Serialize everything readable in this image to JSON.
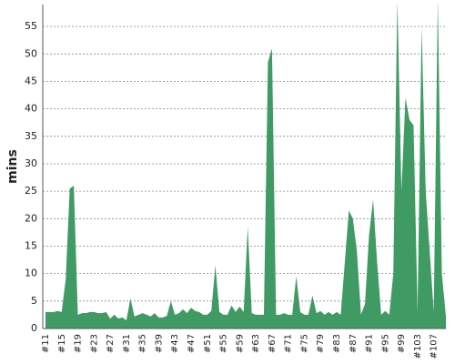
{
  "chart_data": {
    "type": "area",
    "y_label": "mins",
    "categories": [
      "#11",
      null,
      null,
      null,
      "#15",
      null,
      null,
      null,
      "#19",
      null,
      null,
      null,
      "#23",
      null,
      null,
      null,
      "#27",
      null,
      null,
      null,
      "#31",
      null,
      null,
      null,
      "#35",
      null,
      null,
      null,
      "#39",
      null,
      null,
      null,
      "#43",
      null,
      null,
      null,
      "#47",
      null,
      null,
      null,
      "#51",
      null,
      null,
      null,
      "#55",
      null,
      null,
      null,
      "#59",
      null,
      null,
      null,
      "#63",
      null,
      null,
      null,
      "#67",
      null,
      null,
      null,
      "#71",
      null,
      null,
      null,
      "#75",
      null,
      null,
      null,
      "#79",
      null,
      null,
      null,
      "#83",
      null,
      null,
      null,
      "#87",
      null,
      null,
      null,
      "#91",
      null,
      null,
      null,
      "#95",
      null,
      null,
      null,
      "#99",
      null,
      null,
      null,
      "#103",
      null,
      null,
      null,
      "#107",
      null,
      null,
      null
    ],
    "values": [
      3,
      3,
      3,
      3.2,
      3,
      9,
      25.5,
      26,
      2.5,
      2.8,
      2.8,
      3,
      3,
      2.8,
      2.8,
      3,
      1.8,
      2.5,
      1.8,
      2,
      1.5,
      5.5,
      2.2,
      2.5,
      2.8,
      2.5,
      2.2,
      2.8,
      2,
      2,
      2.3,
      5,
      2.5,
      2.8,
      3.5,
      2.8,
      3.8,
      3.2,
      3,
      2.5,
      2.5,
      3.2,
      11.5,
      3,
      2.5,
      2.5,
      4.2,
      3,
      4,
      3,
      18.5,
      2.8,
      2.5,
      2.5,
      2.5,
      48.5,
      51,
      2.5,
      2.5,
      2.8,
      2.5,
      2.5,
      9.5,
      3,
      2.5,
      2.5,
      6,
      2.8,
      3.2,
      2.5,
      3,
      2.5,
      3,
      2.5,
      12,
      21.5,
      20,
      14,
      2.5,
      4.5,
      17,
      23.5,
      12,
      2.5,
      3.2,
      2.5,
      10,
      60,
      25,
      42,
      38,
      37,
      3,
      55,
      25,
      14,
      3,
      60,
      10,
      2.2
    ],
    "color": "#3f9a63",
    "ylim": [
      0,
      59
    ],
    "yticks": [
      0,
      5,
      10,
      15,
      20,
      25,
      30,
      35,
      40,
      45,
      50,
      55
    ],
    "grid": true
  }
}
